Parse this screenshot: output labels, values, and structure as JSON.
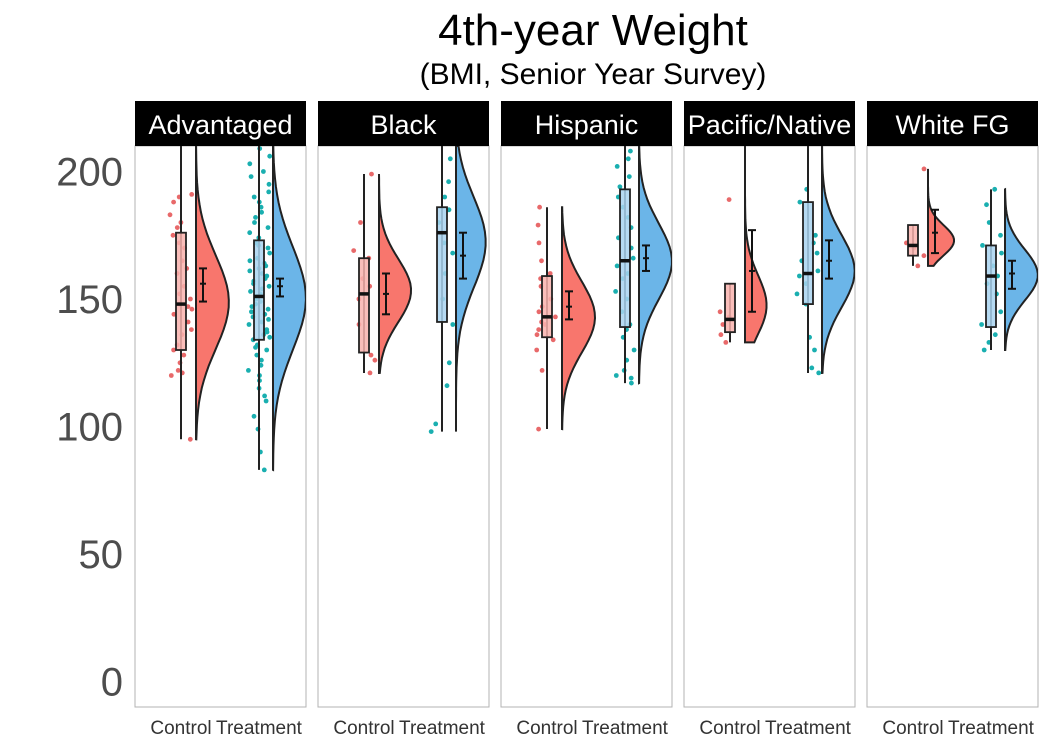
{
  "chart_data": {
    "type": "raincloud",
    "title": "4th-year Weight",
    "subtitle": "(BMI, Senior Year Survey)",
    "ylim": [
      -10,
      210
    ],
    "yticks": [
      0,
      50,
      100,
      150,
      200
    ],
    "groups": [
      "Control",
      "Treatment"
    ],
    "colors": {
      "Control": "#F8766D",
      "Treatment": "#00BFC4",
      "Treatment_fill": "#6BB5E8",
      "Control_box": "#F9B3AE",
      "Treatment_box": "#A9D4F0",
      "Control_points": "#E8696A",
      "Treatment_points": "#1AAFB0"
    },
    "panels": [
      {
        "name": "Advantaged",
        "groups": [
          {
            "group": "Control",
            "min": 95,
            "q1": 130,
            "median": 148,
            "q3": 176,
            "max": 210,
            "mean": 156,
            "ci": [
              149,
              162
            ],
            "violin_range": [
              95,
              210
            ],
            "points": [
              95,
              120,
              121,
              122,
              125,
              128,
              130,
              132,
              136,
              138,
              141,
              144,
              146,
              147,
              148,
              150,
              152,
              155,
              160,
              162,
              165,
              170,
              172,
              175,
              178,
              180,
              183,
              188,
              190,
              191
            ]
          },
          {
            "group": "Treatment",
            "min": 83,
            "q1": 134,
            "median": 151,
            "q3": 173,
            "max": 210,
            "mean": 155,
            "ci": [
              151,
              158
            ],
            "violin_range": [
              83,
              210
            ],
            "points": [
              83,
              90,
              99,
              104,
              110,
              112,
              115,
              118,
              120,
              122,
              124,
              126,
              128,
              130,
              131,
              132,
              134,
              135,
              136,
              137,
              138,
              140,
              141,
              142,
              143,
              144,
              145,
              146,
              147,
              148,
              149,
              150,
              151,
              152,
              153,
              154,
              155,
              156,
              157,
              158,
              159,
              160,
              161,
              162,
              163,
              164,
              165,
              166,
              168,
              170,
              171,
              172,
              174,
              176,
              178,
              180,
              182,
              184,
              186,
              188,
              190,
              192,
              195,
              198,
              200,
              203,
              206,
              209
            ]
          }
        ]
      },
      {
        "name": "Black",
        "groups": [
          {
            "group": "Control",
            "min": 121,
            "q1": 129,
            "median": 152,
            "q3": 166,
            "max": 199,
            "mean": 152,
            "ci": [
              144,
              160
            ],
            "violin_range": [
              121,
              199
            ],
            "points": [
              121,
              126,
              128,
              140,
              150,
              155,
              158,
              166,
              169,
              180,
              199
            ]
          },
          {
            "group": "Treatment",
            "min": 98,
            "q1": 141,
            "median": 176,
            "q3": 186,
            "max": 210,
            "mean": 167,
            "ci": [
              158,
              176
            ],
            "violin_range": [
              98,
              210
            ],
            "points": [
              98,
              101,
              116,
              125,
              140,
              150,
              160,
              168,
              172,
              176,
              180,
              185,
              190,
              196,
              205
            ]
          }
        ]
      },
      {
        "name": "Hispanic",
        "groups": [
          {
            "group": "Control",
            "min": 99,
            "q1": 135,
            "median": 143,
            "q3": 159,
            "max": 186,
            "mean": 147,
            "ci": [
              142,
              153
            ],
            "violin_range": [
              99,
              186
            ],
            "points": [
              99,
              122,
              130,
              134,
              136,
              138,
              140,
              141,
              143,
              145,
              147,
              150,
              155,
              158,
              160,
              165,
              172,
              179,
              186
            ]
          },
          {
            "group": "Treatment",
            "min": 117,
            "q1": 139,
            "median": 165,
            "q3": 193,
            "max": 210,
            "mean": 166,
            "ci": [
              161,
              171
            ],
            "violin_range": [
              117,
              210
            ],
            "points": [
              117,
              119,
              120,
              122,
              126,
              130,
              135,
              138,
              140,
              145,
              150,
              153,
              158,
              160,
              163,
              166,
              170,
              174,
              178,
              182,
              186,
              190,
              194,
              198,
              202,
              205,
              208
            ]
          }
        ]
      },
      {
        "name": "Pacific/Native",
        "groups": [
          {
            "group": "Control",
            "min": 133,
            "q1": 137,
            "median": 142,
            "q3": 156,
            "max": 156,
            "mean": 161,
            "ci": [
              145,
              177
            ],
            "violin_range": [
              133,
              210
            ],
            "points": [
              133,
              136,
              140,
              143,
              145,
              189
            ]
          },
          {
            "group": "Treatment",
            "min": 121,
            "q1": 148,
            "median": 160,
            "q3": 188,
            "max": 210,
            "mean": 165,
            "ci": [
              158,
              173
            ],
            "violin_range": [
              121,
              210
            ],
            "points": [
              121,
              123,
              130,
              135,
              148,
              152,
              156,
              159,
              161,
              165,
              168,
              172,
              175,
              188,
              193
            ]
          }
        ]
      },
      {
        "name": "White FG",
        "groups": [
          {
            "group": "Control",
            "min": 163,
            "q1": 167,
            "median": 171,
            "q3": 179,
            "max": 179,
            "mean": 176,
            "ci": [
              168,
              185
            ],
            "violin_range": [
              163,
              201
            ],
            "points": [
              163,
              167,
              170,
              172,
              201
            ]
          },
          {
            "group": "Treatment",
            "min": 130,
            "q1": 139,
            "median": 159,
            "q3": 171,
            "max": 193,
            "mean": 160,
            "ci": [
              154,
              165
            ],
            "violin_range": [
              130,
              193
            ],
            "points": [
              130,
              133,
              136,
              140,
              145,
              152,
              156,
              159,
              163,
              168,
              171,
              175,
              180,
              187,
              193
            ]
          }
        ]
      }
    ]
  }
}
